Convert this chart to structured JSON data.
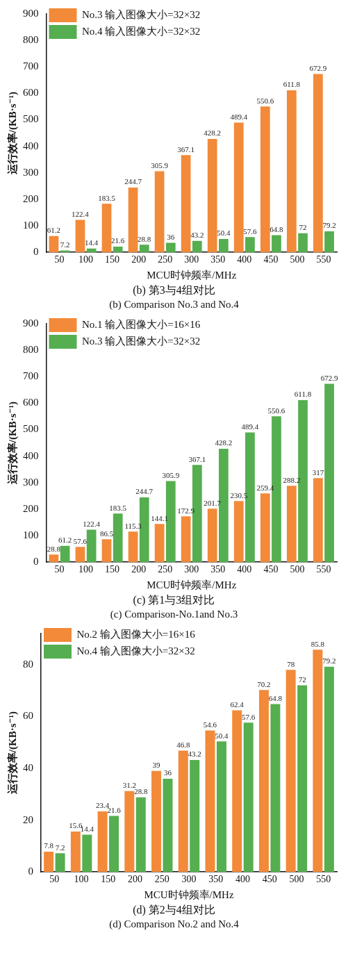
{
  "chart_data": [
    {
      "type": "bar",
      "title": "(b) 第3与4组对比",
      "subtitle": "(b) Comparison No.3 and No.4",
      "xlabel": "MCU时钟频率/MHz",
      "ylabel": "运行效率/(KB·s⁻¹)",
      "categories": [
        "50",
        "100",
        "150",
        "200",
        "250",
        "300",
        "350",
        "400",
        "450",
        "500",
        "550"
      ],
      "series": [
        {
          "name": "No.3 输入图像大小=32×32",
          "color": "#f28a3a",
          "values": [
            61.2,
            122.4,
            183.5,
            244.7,
            305.9,
            367.1,
            428.2,
            489.4,
            550.6,
            611.8,
            672.9
          ]
        },
        {
          "name": "No.4 输入图像大小=32×32",
          "color": "#55ae4f",
          "values": [
            7.2,
            14.4,
            21.6,
            28.8,
            36,
            43.2,
            50.4,
            57.6,
            64.8,
            72,
            79.2
          ]
        }
      ],
      "ylim": [
        0,
        900
      ],
      "yticks": [
        0,
        100,
        200,
        300,
        400,
        500,
        600,
        700,
        800,
        900
      ],
      "grid": false,
      "legend": "top left",
      "data_labels": true
    },
    {
      "type": "bar",
      "title": "(c) 第1与3组对比",
      "subtitle": "(c) Comparison-No.1and No.3",
      "xlabel": "MCU时钟频率/MHz",
      "ylabel": "运行效率/(KB·s⁻¹)",
      "categories": [
        "50",
        "100",
        "150",
        "200",
        "250",
        "300",
        "350",
        "400",
        "450",
        "500",
        "550"
      ],
      "series": [
        {
          "name": "No.1 输入图像大小=16×16",
          "color": "#f28a3a",
          "values": [
            28.8,
            57.6,
            86.5,
            115.3,
            144.1,
            172.9,
            201.7,
            230.5,
            259.4,
            288.2,
            317
          ]
        },
        {
          "name": "No.3 输入图像大小=32×32",
          "color": "#55ae4f",
          "values": [
            61.2,
            122.4,
            183.5,
            244.7,
            305.9,
            367.1,
            428.2,
            489.4,
            550.6,
            611.8,
            672.9
          ]
        }
      ],
      "ylim": [
        0,
        900
      ],
      "yticks": [
        0,
        100,
        200,
        300,
        400,
        500,
        600,
        700,
        800,
        900
      ],
      "grid": false,
      "legend": "top left",
      "data_labels": true
    },
    {
      "type": "bar",
      "title": "(d) 第2与4组对比",
      "subtitle": "(d) Comparison No.2 and No.4",
      "xlabel": "MCU时钟频率/MHz",
      "ylabel": "运行效率/(KB·s⁻¹)",
      "categories": [
        "50",
        "100",
        "150",
        "200",
        "250",
        "300",
        "350",
        "400",
        "450",
        "500",
        "550"
      ],
      "series": [
        {
          "name": "No.2 输入图像大小=16×16",
          "color": "#f28a3a",
          "values": [
            7.8,
            15.6,
            23.4,
            31.2,
            39,
            46.8,
            54.6,
            62.4,
            70.2,
            78,
            85.8
          ]
        },
        {
          "name": "No.4 输入图像大小=32×32",
          "color": "#55ae4f",
          "values": [
            7.2,
            14.4,
            21.6,
            28.8,
            36,
            43.2,
            50.4,
            57.6,
            64.8,
            72,
            79.2
          ]
        }
      ],
      "ylim": [
        0,
        92
      ],
      "yticks": [
        0,
        20,
        40,
        60,
        80
      ],
      "grid": false,
      "legend": "top left",
      "data_labels": true
    }
  ]
}
